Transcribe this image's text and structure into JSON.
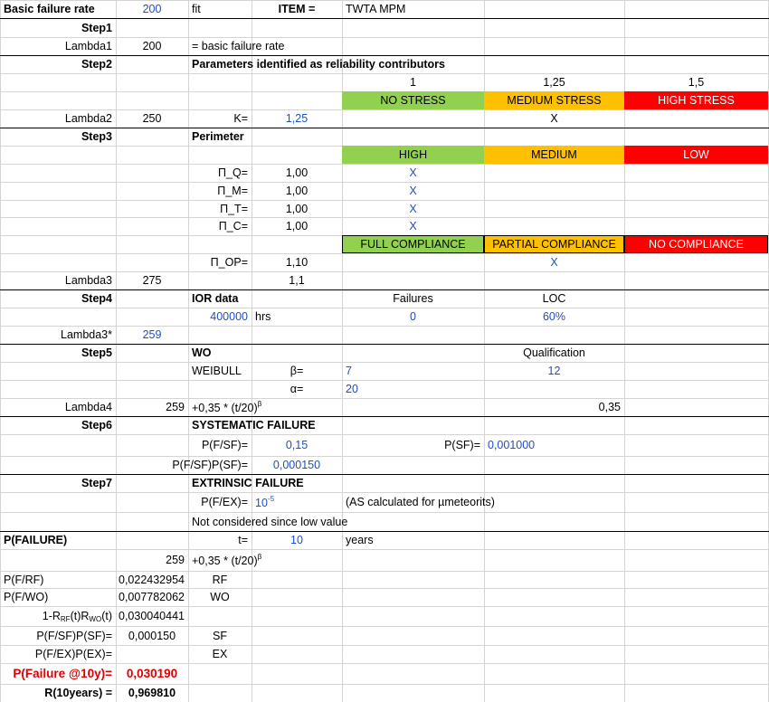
{
  "rows": [
    {
      "A": "Basic failure rate",
      "B": "200",
      "C": "fit",
      "D": "ITEM =",
      "E": "TWTA MPM"
    },
    {
      "A": "Step1"
    },
    {
      "A": "Lambda1",
      "B": "200",
      "C": "= basic failure rate"
    },
    {
      "A": "Step2",
      "C": "Parameters identified as reliability contributors"
    },
    {
      "E": "1",
      "F": "1,25",
      "G": "1,5"
    },
    {
      "E": "NO STRESS",
      "F": "MEDIUM STRESS",
      "G": "HIGH STRESS"
    },
    {
      "A": "Lambda2",
      "B": "250",
      "C": "K=",
      "D": "1,25",
      "F": "X"
    },
    {
      "A": "Step3",
      "C": "Perimeter"
    },
    {
      "E": "HIGH",
      "F": "MEDIUM",
      "G": "LOW"
    },
    {
      "C": "Π_Q=",
      "D": "1,00",
      "E": "X"
    },
    {
      "C": "Π_M=",
      "D": "1,00",
      "E": "X"
    },
    {
      "C": "Π_T=",
      "D": "1,00",
      "E": "X"
    },
    {
      "C": "Π_C=",
      "D": "1,00",
      "E": "X"
    },
    {
      "E": "FULL COMPLIANCE",
      "F": "PARTIAL COMPLIANCE",
      "G": "NO COMPLIANCE"
    },
    {
      "C": "Π_OP=",
      "D": "1,10",
      "F": "X"
    },
    {
      "A": "Lambda3",
      "B": "275",
      "D": "1,1"
    },
    {
      "A": "Step4",
      "C": "IOR data",
      "E": "Failures",
      "F": "LOC"
    },
    {
      "C": "400000",
      "D": "hrs",
      "E": "0",
      "F": "60%"
    },
    {
      "A": "Lambda3*",
      "B": "259"
    },
    {
      "A": "Step5",
      "C": "WO",
      "F": "Qualification"
    },
    {
      "C": "WEIBULL",
      "D": "β=",
      "E": "7",
      "F": "12"
    },
    {
      "D": "α=",
      "E": "20"
    },
    {
      "A": "Lambda4",
      "B": "259",
      "C": [
        "+0,35 * (t/20)",
        "β"
      ],
      "F": "0,35"
    },
    {
      "A": "Step6",
      "C": "SYSTEMATIC FAILURE"
    },
    {
      "C": "P(F/SF)=",
      "D": "0,15",
      "E": "P(SF)=",
      "F": "0,001000"
    },
    {
      "C": "P(F/SF)P(SF)=",
      "D": "0,000150"
    },
    {
      "A": "Step7",
      "C": "EXTRINSIC FAILURE"
    },
    {
      "C": "P(F/EX)=",
      "D": [
        "10",
        "-5"
      ],
      "E": "(AS  calculated for µmeteorits)"
    },
    {
      "C": "Not considered since low value"
    },
    {
      "A": "P(FAILURE)",
      "C": "t=",
      "D": "10",
      "E": "years"
    },
    {
      "B": "259",
      "C": [
        "+0,35 * (t/20)",
        "β"
      ]
    },
    {
      "A": "P(F/RF)",
      "B": "0,022432954",
      "C": "RF"
    },
    {
      "A": "P(F/WO)",
      "B": "0,007782062",
      "C": "WO"
    },
    {
      "A": [
        "1-R",
        "RF",
        "(t)R",
        "WO",
        "(t)"
      ],
      "B": "0,030040441"
    },
    {
      "A": "P(F/SF)P(SF)=",
      "B": "0,000150",
      "C": "SF"
    },
    {
      "A": "P(F/EX)P(EX)=",
      "C": "EX"
    },
    {
      "A": "P(Failure @10y)=",
      "B": "0,030190"
    },
    {
      "A": "R(10years) =",
      "B": "0,969810"
    }
  ]
}
